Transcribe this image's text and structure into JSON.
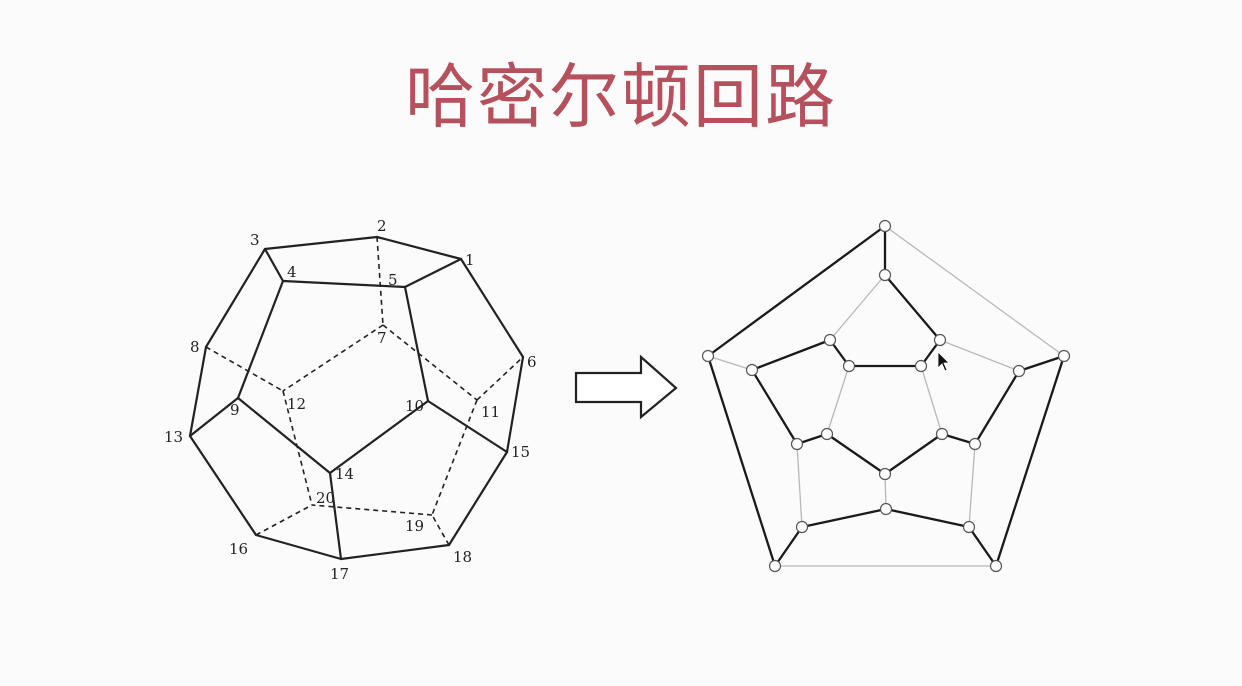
{
  "title": "哈密尔顿回路",
  "colors": {
    "title": "#b5505c",
    "edge": "#222222",
    "hidden_edge": "#222222",
    "path_edge": "#1a1a1a",
    "other_edge": "#b8b8b8",
    "node_fill": "#ffffff",
    "node_stroke": "#555555",
    "arrow_fill": "#ffffff",
    "arrow_stroke": "#222222"
  },
  "dodecahedron": {
    "vertex_labels": [
      "1",
      "2",
      "3",
      "4",
      "5",
      "6",
      "7",
      "8",
      "9",
      "10",
      "11",
      "12",
      "13",
      "14",
      "15",
      "16",
      "17",
      "18",
      "19",
      "20"
    ]
  },
  "arrow": {
    "icon": "right-arrow-icon"
  },
  "graph": {
    "node_count": 20,
    "hamiltonian_cycle_highlighted": true,
    "cursor_icon": "mouse-pointer-icon"
  }
}
